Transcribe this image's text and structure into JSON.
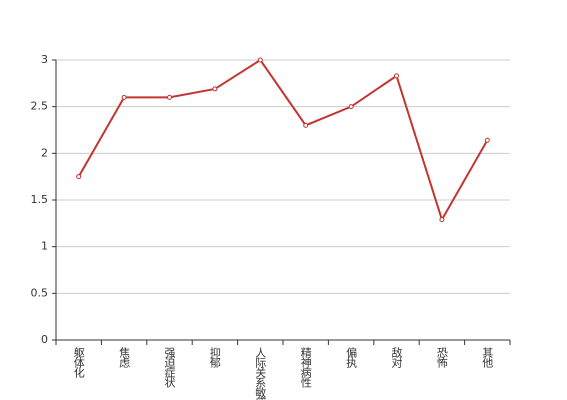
{
  "chart_data": {
    "type": "line",
    "categories": [
      "躯体化",
      "焦虑",
      "强迫症状",
      "抑郁",
      "人际关系敏感",
      "精神病性",
      "偏执",
      "敌对",
      "恐怖",
      "其他"
    ],
    "values": [
      1.75,
      2.6,
      2.6,
      2.69,
      3.0,
      2.3,
      2.5,
      2.83,
      1.29,
      2.14
    ],
    "color": "#c23531",
    "ylim": [
      0,
      3
    ],
    "yticks": [
      0,
      0.5,
      1,
      1.5,
      2,
      2.5,
      3
    ],
    "grid": true
  }
}
